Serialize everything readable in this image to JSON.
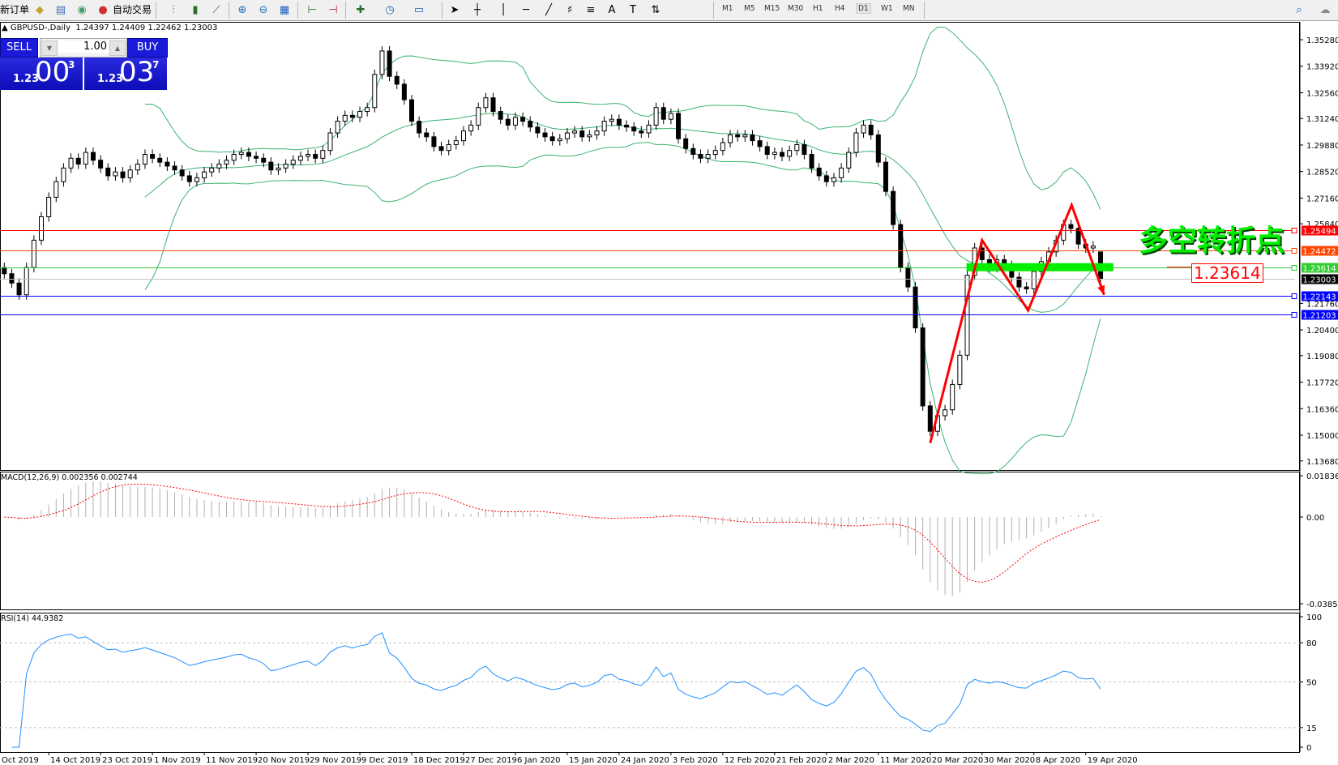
{
  "toolbar": {
    "new_order": "新订单",
    "auto_trading": "自动交易",
    "timeframes": [
      "M1",
      "M5",
      "M15",
      "M30",
      "H1",
      "H4",
      "D1",
      "W1",
      "MN"
    ],
    "active_timeframe": "D1",
    "icons": [
      "strategy-tester-icon",
      "history-center-icon",
      "signals-icon",
      "auto-trading-icon",
      "bar-chart-icon",
      "candlestick-icon",
      "line-chart-icon",
      "zoom-in-icon",
      "zoom-out-icon",
      "tile-windows-icon",
      "chart-shift-icon",
      "autoscroll-icon",
      "indicators-icon",
      "periods-icon",
      "templates-icon",
      "cursor-icon",
      "crosshair-icon",
      "vertical-line-icon",
      "horizontal-line-icon",
      "trendline-icon",
      "fibonacci-icon",
      "fibo-levels-icon",
      "text-icon",
      "text-label-icon",
      "arrows-icon",
      "search-icon",
      "community-icon"
    ]
  },
  "chart_header": {
    "symbol": "GBPUSD-,Daily",
    "ohlc": "1.24397 1.24409 1.22462 1.23003"
  },
  "one_click": {
    "sell_label": "SELL",
    "buy_label": "BUY",
    "lot": "1.00",
    "bid_prefix": "1.23",
    "bid_big": "00",
    "bid_sup": "3",
    "ask_prefix": "1.23",
    "ask_big": "03",
    "ask_sup": "7"
  },
  "annotation_text": "多空转折点",
  "annotation_price_label": "1.23614",
  "colors": {
    "bands": "#3cb371",
    "macd_hist": "#b0b0b0",
    "macd_signal": "#ff0000",
    "rsi": "#1e90ff",
    "zigzag": "#ff0000",
    "green_bar": "#00ee00"
  },
  "chart_data": [
    {
      "type": "candlestick",
      "title": "GBPUSD-,Daily",
      "ylim": [
        1.1368,
        1.3528
      ],
      "y_ticks": [
        "1.35280",
        "1.33920",
        "1.32560",
        "1.31240",
        "1.29880",
        "1.28520",
        "1.27160",
        "1.25840",
        "1.21760",
        "1.20400",
        "1.19080",
        "1.17720",
        "1.16360",
        "1.15000",
        "1.13680"
      ],
      "x_ticks": [
        "Oct 2019",
        "14 Oct 2019",
        "23 Oct 2019",
        "1 Nov 2019",
        "11 Nov 2019",
        "20 Nov 2019",
        "29 Nov 2019",
        "9 Dec 2019",
        "18 Dec 2019",
        "27 Dec 2019",
        "6 Jan 2020",
        "15 Jan 2020",
        "24 Jan 2020",
        "3 Feb 2020",
        "12 Feb 2020",
        "21 Feb 2020",
        "2 Mar 2020",
        "11 Mar 2020",
        "20 Mar 2020",
        "30 Mar 2020",
        "8 Apr 2020",
        "19 Apr 2020"
      ],
      "closes": [
        1.2328,
        1.228,
        1.222,
        1.236,
        1.25,
        1.262,
        1.272,
        1.28,
        1.287,
        1.292,
        1.289,
        1.295,
        1.291,
        1.287,
        1.283,
        1.285,
        1.282,
        1.286,
        1.289,
        1.294,
        1.292,
        1.29,
        1.288,
        1.286,
        1.283,
        1.28,
        1.282,
        1.285,
        1.287,
        1.289,
        1.291,
        1.294,
        1.295,
        1.293,
        1.292,
        1.29,
        1.286,
        1.287,
        1.289,
        1.291,
        1.293,
        1.294,
        1.292,
        1.296,
        1.305,
        1.311,
        1.314,
        1.313,
        1.316,
        1.318,
        1.335,
        1.347,
        1.334,
        1.33,
        1.322,
        1.311,
        1.305,
        1.303,
        1.298,
        1.296,
        1.299,
        1.301,
        1.306,
        1.309,
        1.318,
        1.323,
        1.316,
        1.312,
        1.309,
        1.313,
        1.311,
        1.308,
        1.305,
        1.303,
        1.301,
        1.302,
        1.305,
        1.306,
        1.303,
        1.304,
        1.306,
        1.311,
        1.312,
        1.309,
        1.308,
        1.306,
        1.305,
        1.309,
        1.318,
        1.312,
        1.315,
        1.302,
        1.297,
        1.294,
        1.292,
        1.294,
        1.296,
        1.3,
        1.304,
        1.303,
        1.304,
        1.301,
        1.298,
        1.294,
        1.295,
        1.293,
        1.296,
        1.299,
        1.294,
        1.287,
        1.283,
        1.28,
        1.282,
        1.287,
        1.295,
        1.305,
        1.309,
        1.304,
        1.29,
        1.275,
        1.258,
        1.236,
        1.226,
        1.205,
        1.165,
        1.152,
        1.16,
        1.163,
        1.176,
        1.191,
        1.232,
        1.246,
        1.24,
        1.236,
        1.24,
        1.237,
        1.231,
        1.226,
        1.225,
        1.234,
        1.239,
        1.244,
        1.25,
        1.258,
        1.256,
        1.248,
        1.246,
        1.247,
        1.23003
      ],
      "last_bar": {
        "open": 1.24397,
        "high": 1.24409,
        "low": 1.22462,
        "close": 1.23003
      },
      "bollinger": {
        "period": 20,
        "deviation": 2
      },
      "horizontal_lines": [
        {
          "price": "1.25494",
          "color": "#ff0000"
        },
        {
          "price": "1.24472",
          "color": "#ff4500"
        },
        {
          "price": "1.23614",
          "color": "#32cd32"
        },
        {
          "price": "1.23003",
          "color": "#000000",
          "line": "#c0c0c0"
        },
        {
          "price": "1.22143",
          "color": "#0000ff"
        },
        {
          "price": "1.21203",
          "color": "#0000ff"
        }
      ],
      "zigzag": [
        {
          "date": "20 Mar 2020",
          "price": 1.146
        },
        {
          "date": "30 Mar 2020",
          "price": 1.25
        },
        {
          "date": "7 Apr 2020",
          "price": 1.214
        },
        {
          "date": "16 Apr 2020",
          "price": 1.268
        },
        {
          "date": "23 Apr 2020",
          "price": 1.222
        }
      ],
      "green_zone": {
        "price": 1.23614,
        "start": "27 Mar 2020",
        "end": "25 Apr 2020"
      }
    },
    {
      "type": "macd",
      "label": "MACD(12,26,9) 0.002356 0.002744",
      "y_ticks": [
        "0.018369",
        "0.00",
        "-0.038585"
      ],
      "ylim": [
        -0.038585,
        0.018369
      ]
    },
    {
      "type": "line",
      "label": "RSI(14) 44.9382",
      "y_ticks": [
        "100",
        "80",
        "50",
        "15",
        "0"
      ],
      "ylim": [
        0,
        100
      ],
      "levels": [
        80,
        50,
        15
      ]
    }
  ]
}
